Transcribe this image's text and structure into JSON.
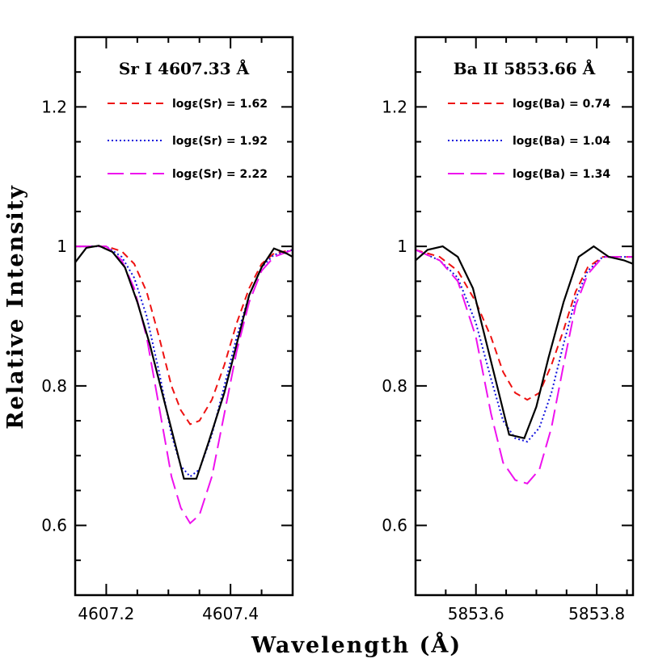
{
  "chart_data": {
    "type": "line",
    "xlabel": "Wavelength (Å)",
    "ylabel": "Relative Intensity",
    "yticks": [
      {
        "value": 0.6,
        "label": "0.6"
      },
      {
        "value": 0.8,
        "label": "0.8"
      },
      {
        "value": 1.0,
        "label": "1"
      },
      {
        "value": 1.2,
        "label": "1.2"
      }
    ],
    "ylim": [
      0.5,
      1.3
    ],
    "colors": {
      "observed": "#000000",
      "low": "#ee1111",
      "mid": "#1111dd",
      "high": "#ee11ee"
    },
    "panels": [
      {
        "title": "Sr I 4607.33 Å",
        "xlim": [
          4607.15,
          4607.5
        ],
        "xticks": [
          {
            "value": 4607.2,
            "label": "4607.2"
          },
          {
            "value": 4607.4,
            "label": "4607.4"
          }
        ],
        "observed": {
          "x": [
            4607.15,
            4607.168,
            4607.188,
            4607.21,
            4607.23,
            4607.25,
            4607.27,
            4607.29,
            4607.31,
            4607.325,
            4607.345,
            4607.365,
            4607.39,
            4607.41,
            4607.43,
            4607.45,
            4607.47,
            4607.49,
            4607.5
          ],
          "y": [
            0.977,
            0.998,
            1.001,
            0.992,
            0.97,
            0.92,
            0.86,
            0.79,
            0.72,
            0.667,
            0.667,
            0.72,
            0.79,
            0.86,
            0.93,
            0.97,
            0.997,
            0.99,
            0.985
          ]
        },
        "series": [
          {
            "name": "logε(Sr) = 1.62",
            "style": "short-dash",
            "x": [
              4607.15,
              4607.2,
              4607.225,
              4607.245,
              4607.265,
              4607.285,
              4607.305,
              4607.32,
              4607.335,
              4607.35,
              4607.37,
              4607.39,
              4607.41,
              4607.43,
              4607.45,
              4607.47,
              4607.5
            ],
            "y": [
              1.0,
              1.0,
              0.993,
              0.975,
              0.935,
              0.87,
              0.8,
              0.765,
              0.745,
              0.75,
              0.78,
              0.83,
              0.89,
              0.94,
              0.975,
              0.99,
              0.995
            ]
          },
          {
            "name": "logε(Sr) = 1.92",
            "style": "dotted",
            "x": [
              4607.15,
              4607.2,
              4607.225,
              4607.245,
              4607.265,
              4607.285,
              4607.305,
              4607.32,
              4607.335,
              4607.35,
              4607.37,
              4607.39,
              4607.41,
              4607.43,
              4607.45,
              4607.47,
              4607.5
            ],
            "y": [
              1.0,
              1.0,
              0.985,
              0.955,
              0.9,
              0.82,
              0.73,
              0.685,
              0.67,
              0.68,
              0.73,
              0.8,
              0.87,
              0.93,
              0.97,
              0.988,
              0.995
            ]
          },
          {
            "name": "logε(Sr) = 2.22",
            "style": "long-dash",
            "x": [
              4607.15,
              4607.2,
              4607.225,
              4607.245,
              4607.265,
              4607.285,
              4607.305,
              4607.32,
              4607.335,
              4607.35,
              4607.37,
              4607.39,
              4607.41,
              4607.43,
              4607.45,
              4607.47,
              4607.5
            ],
            "y": [
              1.0,
              1.0,
              0.98,
              0.94,
              0.87,
              0.77,
              0.67,
              0.625,
              0.603,
              0.615,
              0.67,
              0.76,
              0.85,
              0.92,
              0.965,
              0.985,
              0.995
            ]
          }
        ]
      },
      {
        "title": "Ba II 5853.66 Å",
        "xlim": [
          5853.5,
          5853.86
        ],
        "xticks": [
          {
            "value": 5853.6,
            "label": "5853.6"
          },
          {
            "value": 5853.8,
            "label": "5853.8"
          }
        ],
        "observed": {
          "x": [
            5853.5,
            5853.52,
            5853.545,
            5853.57,
            5853.595,
            5853.615,
            5853.635,
            5853.655,
            5853.68,
            5853.7,
            5853.72,
            5853.745,
            5853.77,
            5853.795,
            5853.82,
            5853.845,
            5853.86
          ],
          "y": [
            0.98,
            0.995,
            1.0,
            0.985,
            0.94,
            0.87,
            0.8,
            0.73,
            0.725,
            0.77,
            0.84,
            0.92,
            0.985,
            1.0,
            0.985,
            0.98,
            0.975
          ]
        },
        "series": [
          {
            "name": "logε(Ba) = 0.74",
            "style": "short-dash",
            "x": [
              5853.5,
              5853.54,
              5853.57,
              5853.6,
              5853.625,
              5853.645,
              5853.665,
              5853.685,
              5853.705,
              5853.725,
              5853.745,
              5853.765,
              5853.785,
              5853.81,
              5853.86
            ],
            "y": [
              0.995,
              0.985,
              0.965,
              0.92,
              0.87,
              0.82,
              0.79,
              0.78,
              0.79,
              0.83,
              0.88,
              0.935,
              0.97,
              0.985,
              0.985
            ]
          },
          {
            "name": "logε(Ba) = 1.04",
            "style": "dotted",
            "x": [
              5853.5,
              5853.54,
              5853.57,
              5853.6,
              5853.625,
              5853.645,
              5853.665,
              5853.685,
              5853.705,
              5853.725,
              5853.745,
              5853.765,
              5853.785,
              5853.81,
              5853.86
            ],
            "y": [
              0.995,
              0.98,
              0.955,
              0.89,
              0.81,
              0.75,
              0.725,
              0.72,
              0.74,
              0.79,
              0.86,
              0.925,
              0.965,
              0.985,
              0.985
            ]
          },
          {
            "name": "logε(Ba) = 1.34",
            "style": "long-dash",
            "x": [
              5853.5,
              5853.54,
              5853.57,
              5853.6,
              5853.625,
              5853.645,
              5853.665,
              5853.685,
              5853.705,
              5853.725,
              5853.745,
              5853.765,
              5853.785,
              5853.81,
              5853.86
            ],
            "y": [
              0.995,
              0.98,
              0.95,
              0.87,
              0.76,
              0.69,
              0.665,
              0.66,
              0.68,
              0.74,
              0.83,
              0.915,
              0.96,
              0.985,
              0.985
            ]
          }
        ]
      }
    ]
  }
}
